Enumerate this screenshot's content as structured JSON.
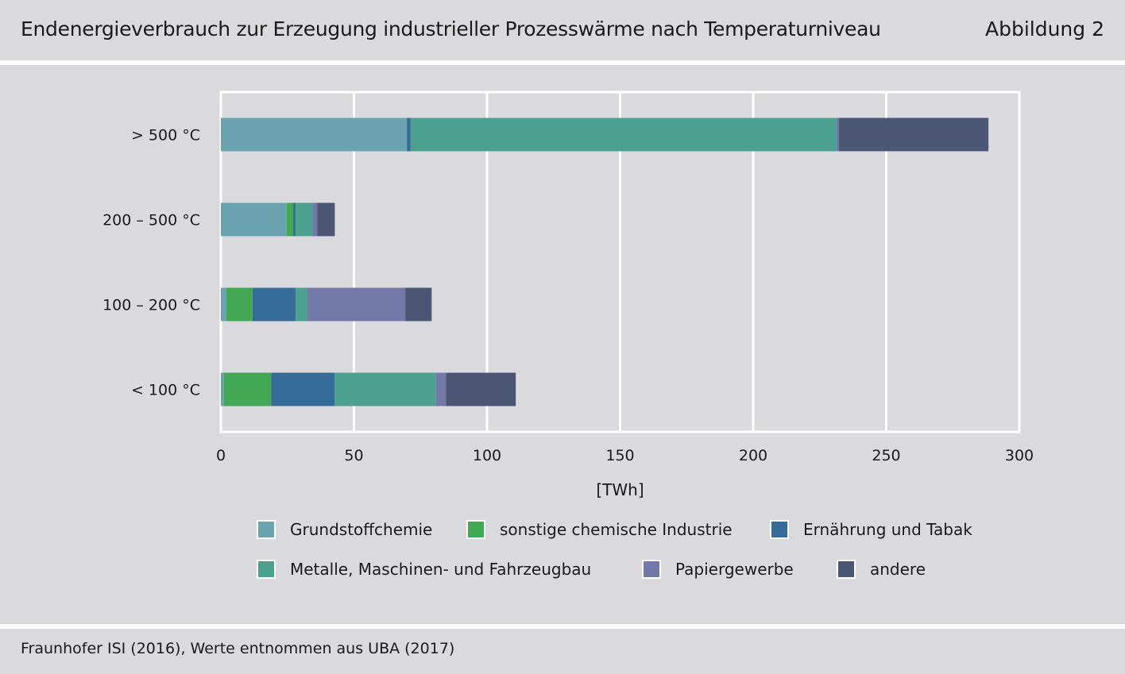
{
  "header": {
    "title": "Endenergieverbrauch zur Erzeugung industrieller Prozesswärme nach Temperaturniveau",
    "figure_label": "Abbildung 2"
  },
  "footer": {
    "source": "Fraunhofer ISI (2016), Werte entnommen aus UBA (2017)"
  },
  "chart_data": {
    "type": "bar",
    "orientation": "horizontal",
    "stacked": true,
    "title": "Endenergieverbrauch zur Erzeugung industrieller Prozesswärme nach Temperaturniveau",
    "xlabel": "[TWh]",
    "ylabel": "",
    "xlim": [
      0,
      300
    ],
    "xticks": [
      0,
      50,
      100,
      150,
      200,
      250,
      300
    ],
    "grid": true,
    "legend_position": "bottom",
    "categories": [
      "> 500 °C",
      "200 – 500 °C",
      "100 – 200 °C",
      "< 100 °C"
    ],
    "series": [
      {
        "name": "Grundstoffchemie",
        "color": "#6ba4b0",
        "values": [
          69.9,
          24.7,
          2.0,
          1.2
        ]
      },
      {
        "name": "sonstige chemische Industrie",
        "color": "#43a853",
        "values": [
          0.0,
          2.4,
          9.9,
          17.7
        ]
      },
      {
        "name": "Ernährung und Tabak",
        "color": "#366c99",
        "values": [
          1.4,
          1.0,
          16.2,
          23.8
        ]
      },
      {
        "name": "Metalle, Maschinen- und Fahrzeugbau",
        "color": "#4ca090",
        "values": [
          160.0,
          6.3,
          4.3,
          38.1
        ]
      },
      {
        "name": "Papiergewerbe",
        "color": "#7278a8",
        "values": [
          0.9,
          1.8,
          36.9,
          3.8
        ]
      },
      {
        "name": "andere",
        "color": "#4b5674",
        "values": [
          56.2,
          6.6,
          9.9,
          26.2
        ]
      }
    ]
  }
}
